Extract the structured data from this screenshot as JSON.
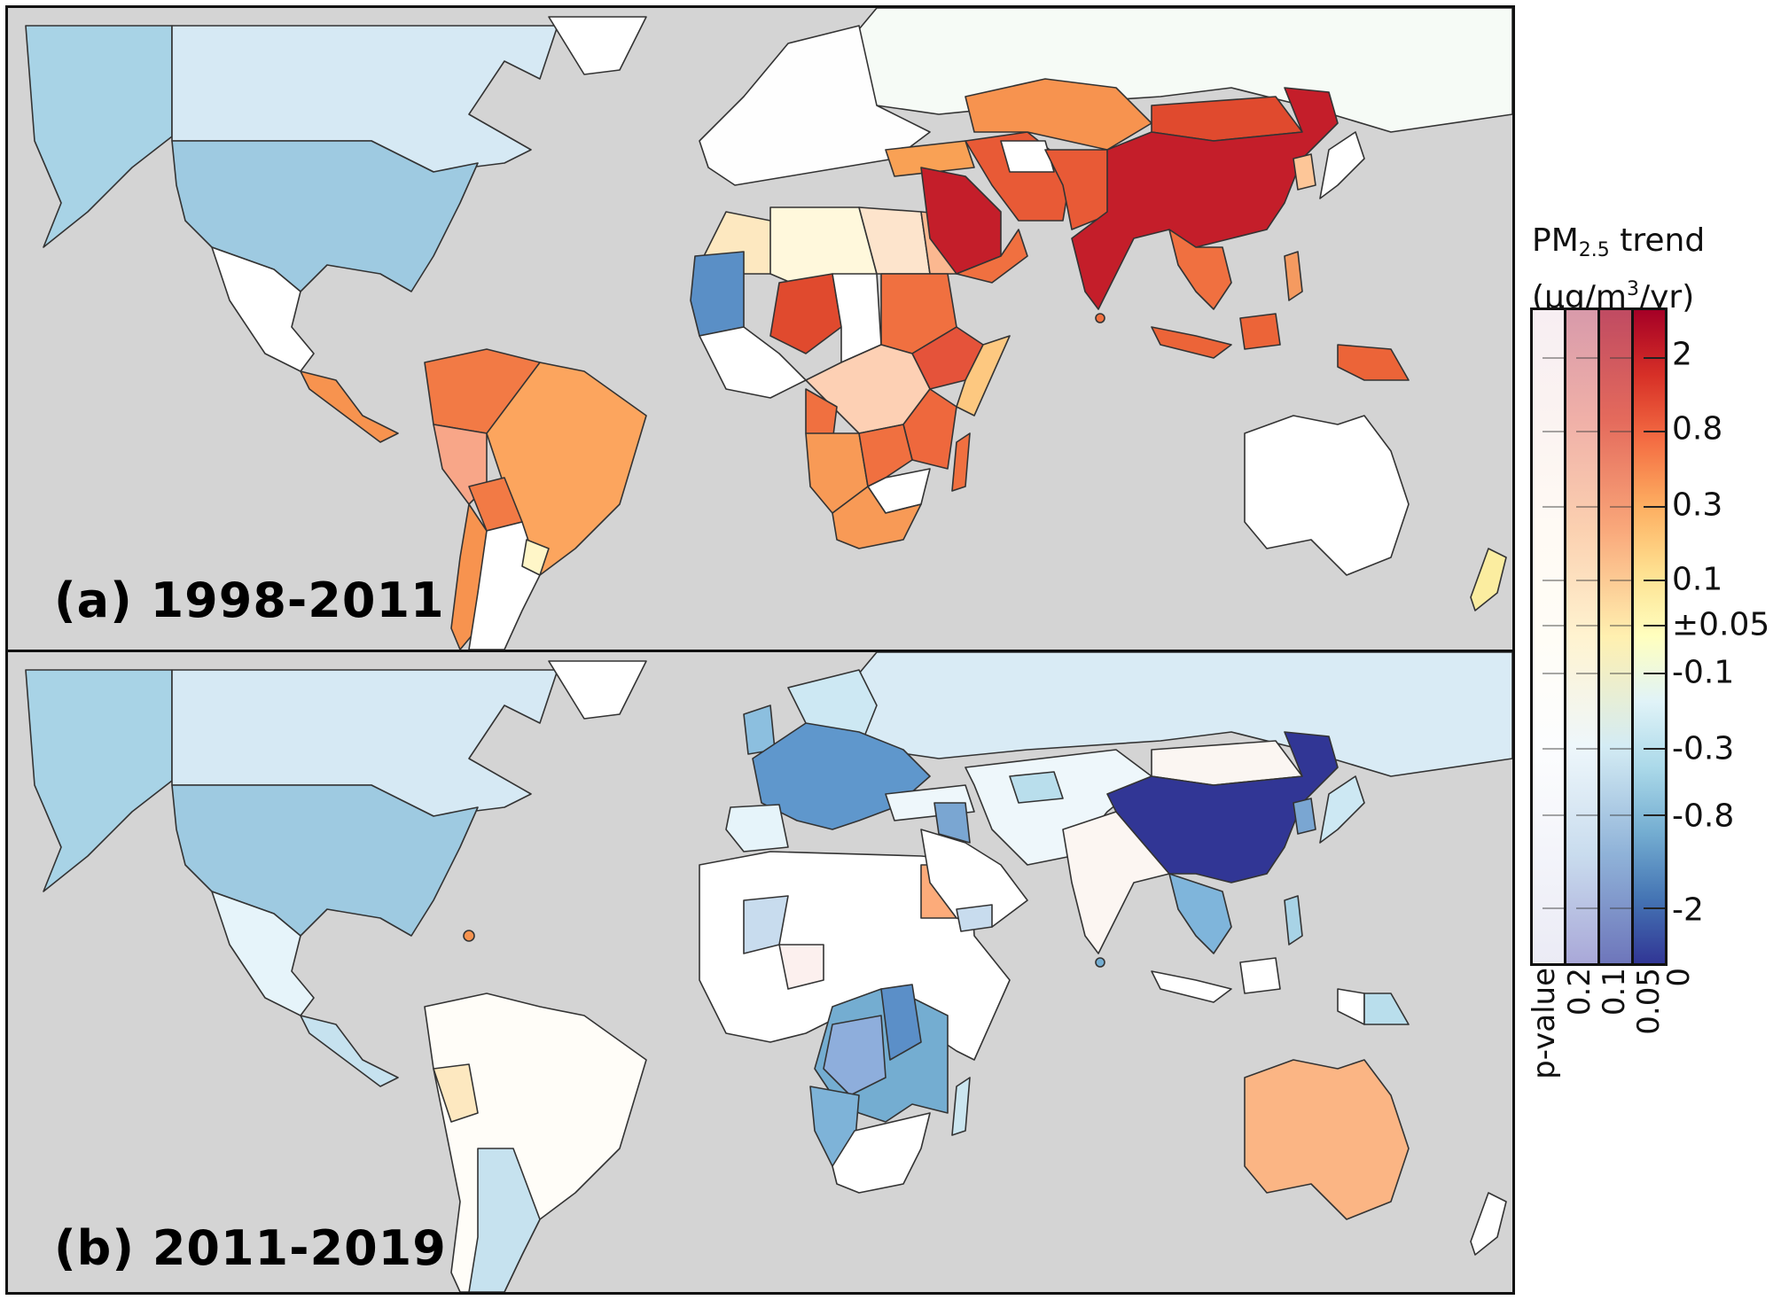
{
  "figure": {
    "panels": [
      {
        "id": "a",
        "label": "(a) 1998-2011"
      },
      {
        "id": "b",
        "label": "(b) 2011-2019"
      }
    ],
    "ocean_color": "#d4d4d4",
    "no_data_color": "#d4d4d4"
  },
  "colorbar": {
    "title_main": "PM",
    "title_sub": "2.5",
    "title_rest": " trend",
    "units_open": "(μg/m",
    "units_sup": "3",
    "units_close": "/yr)",
    "ticks": [
      "2",
      "0.8",
      "0.3",
      "0.1",
      "±0.05",
      "-0.1",
      "-0.3",
      "-0.8",
      "-2"
    ],
    "tick_positions_pct": [
      7.2,
      18.5,
      30.0,
      41.3,
      48.2,
      55.5,
      67.0,
      77.2,
      91.5
    ],
    "pvalue_axis_label": "p-value",
    "pvalue_labels": [
      "0.2",
      "0.1",
      "0.05",
      "0"
    ],
    "columns": [
      {
        "pvalue_range": ">0.2",
        "gradient": [
          "#f7eef2",
          "#fbf3f1",
          "#fffaf4",
          "#fffdf6",
          "#fcfdfe",
          "#f3f4fa",
          "#ebebf5"
        ]
      },
      {
        "pvalue_range": "0.1-0.2",
        "gradient": [
          "#d89aaa",
          "#f0b0a8",
          "#fbd0b0",
          "#fff3d0",
          "#eef7fb",
          "#c9dcee",
          "#a9a8d8"
        ]
      },
      {
        "pvalue_range": "0.05-0.1",
        "gradient": [
          "#c04b62",
          "#e46a5c",
          "#f9a77a",
          "#fff0b0",
          "#d4ecf4",
          "#8fb2d8",
          "#6e76bb"
        ]
      },
      {
        "pvalue_range": "0-0.05",
        "gradient": [
          "#a50026",
          "#d73027",
          "#f46d43",
          "#fdae61",
          "#fee090",
          "#ffffbf",
          "#e0f3f8",
          "#abd9e9",
          "#74add1",
          "#4575b4",
          "#313695"
        ]
      }
    ]
  },
  "chart_data": {
    "type": "choropleth-map",
    "title": "PM2.5 trend by country",
    "colorbar_label": "PM2.5 trend (μg/m3/yr)",
    "colorbar_ticks": [
      2,
      0.8,
      0.3,
      0.1,
      "±0.05",
      -0.1,
      -0.3,
      -0.8,
      -2
    ],
    "pvalue_bins": [
      0.2,
      0.1,
      0.05,
      0
    ],
    "panels": [
      {
        "label": "(a) 1998-2011",
        "regions": {
          "China": {
            "trend": ">2",
            "color": "#c41e2a"
          },
          "India": {
            "trend": ">2",
            "color": "#c41e2a"
          },
          "Saudi Arabia": {
            "trend": "~1.5",
            "color": "#c41e2a"
          },
          "Mongolia": {
            "trend": "~1",
            "color": "#e04a2e"
          },
          "Iran": {
            "trend": "~0.8",
            "color": "#e85a36"
          },
          "Kazakhstan": {
            "trend": "~0.4",
            "color": "#f7934f"
          },
          "Southeast Asia": {
            "trend": "~0.5",
            "color": "#f07040"
          },
          "Indonesia / Papua New Guinea": {
            "trend": "~0.6",
            "color": "#ec6438"
          },
          "Niger": {
            "trend": "~0.9",
            "color": "#e04a2e"
          },
          "Ethiopia": {
            "trend": "~0.8",
            "color": "#e5533a"
          },
          "Sudan": {
            "trend": "~0.5",
            "color": "#f07040"
          },
          "East Africa": {
            "trend": "~0.5",
            "color": "#ee683d"
          },
          "Southern Africa": {
            "trend": "~0.3",
            "color": "#f89a56"
          },
          "DR Congo": {
            "trend": "~0.15",
            "color": "#fdd0b4"
          },
          "Brazil": {
            "trend": "~0.3",
            "color": "#fca55e"
          },
          "Colombia/Venezuela": {
            "trend": "~0.5",
            "color": "#f27a45"
          },
          "Peru": {
            "trend": "~0.2",
            "color": "#f8a688"
          },
          "Bolivia": {
            "trend": "~0.5",
            "color": "#f27a45"
          },
          "Central America": {
            "trend": "~0.4",
            "color": "#f7934f"
          },
          "Madagascar": {
            "trend": "~0.5",
            "color": "#f07040"
          },
          "Mauritania": {
            "trend": "~-0.5",
            "color": "#5a8fc6"
          },
          "Algeria": {
            "trend": "~0.05",
            "color": "#fff8dc"
          },
          "Libya": {
            "trend": "~0.1",
            "color": "#fde4cc"
          },
          "Egypt": {
            "trend": "~0.2",
            "color": "#fbb890"
          },
          "Turkey": {
            "trend": "~0.3",
            "color": "#f9a155"
          },
          "USA": {
            "trend": "~-0.3",
            "color": "#9ecae1"
          },
          "Canada": {
            "trend": "~-0.1",
            "color": "#d6e9f4"
          },
          "Alaska": {
            "trend": "~-0.3",
            "color": "#a8d3e6"
          },
          "Mexico": {
            "trend": "~0",
            "color": "#ffffff"
          },
          "Argentina": {
            "trend": "~0",
            "color": "#ffffff"
          },
          "Uruguay": {
            "trend": "~0.05",
            "color": "#fff6c8"
          },
          "Europe": {
            "trend": "~0",
            "color": "#fefefe"
          },
          "Russia": {
            "trend": "~0",
            "color": "#f6fbf6"
          },
          "Australia": {
            "trend": "~0",
            "color": "#ffffff"
          },
          "New Zealand": {
            "trend": "~0.05",
            "color": "#fbeda0"
          },
          "South Korea": {
            "trend": "~0.15",
            "color": "#fdc698"
          },
          "Japan": {
            "trend": "~0",
            "color": "#ffffff"
          },
          "Turkmenistan": {
            "trend": "~0",
            "color": "#ffffff"
          }
        }
      },
      {
        "label": "(b) 2011-2019",
        "regions": {
          "China": {
            "trend": "<-2",
            "color": "#313695"
          },
          "India": {
            "trend": "~0",
            "color": "#fcf6f2"
          },
          "Europe (France, Germany, Poland...)": {
            "trend": "~-0.6",
            "color": "#5f97cc"
          },
          "UK": {
            "trend": "~-0.4",
            "color": "#8cbfdf"
          },
          "Iraq": {
            "trend": "~-0.5",
            "color": "#7aa6d2"
          },
          "Egypt": {
            "trend": "~0.3",
            "color": "#fcab7a"
          },
          "Australia": {
            "trend": "~0.3",
            "color": "#fbb584"
          },
          "USA": {
            "trend": "~-0.3",
            "color": "#9ecae1"
          },
          "Canada": {
            "trend": "~-0.1",
            "color": "#d6e9f4"
          },
          "Russia": {
            "trend": "~-0.1",
            "color": "#d9ebf5"
          },
          "Central/East Africa": {
            "trend": "~-0.5",
            "color": "#74add1"
          },
          "DR Congo": {
            "trend": "~-0.4",
            "color": "#8eaedc"
          },
          "South Sudan/Uganda": {
            "trend": "~-0.6",
            "color": "#5b8fc8"
          },
          "Angola": {
            "trend": "~-0.4",
            "color": "#7eb3d8"
          },
          "North Africa": {
            "trend": "~0",
            "color": "#ffffff"
          },
          "Mali": {
            "trend": "~-0.15",
            "color": "#c8dcee"
          },
          "Southeast Asia": {
            "trend": "~-0.4",
            "color": "#7fb5db"
          },
          "Peru": {
            "trend": "~0.05",
            "color": "#fde8c0"
          },
          "Argentina": {
            "trend": "~-0.15",
            "color": "#c6e2ef"
          },
          "Brazil": {
            "trend": "~0",
            "color": "#fffdf8"
          },
          "Mexico": {
            "trend": "~-0.1",
            "color": "#e6f4fa"
          },
          "Madagascar": {
            "trend": "~-0.15",
            "color": "#cbe6f0"
          },
          "North Korea": {
            "trend": "~-0.5",
            "color": "#7aa6d2"
          },
          "Japan": {
            "trend": "~-0.15",
            "color": "#cde8f3"
          },
          "Papua New Guinea": {
            "trend": "~-0.2",
            "color": "#b9deec"
          },
          "Kazakhstan": {
            "trend": "~-0.05",
            "color": "#eef7fb"
          },
          "Mongolia": {
            "trend": "~0",
            "color": "#fbf6f2"
          },
          "New Zealand": {
            "trend": "~0",
            "color": "#ffffff"
          }
        }
      }
    ]
  }
}
